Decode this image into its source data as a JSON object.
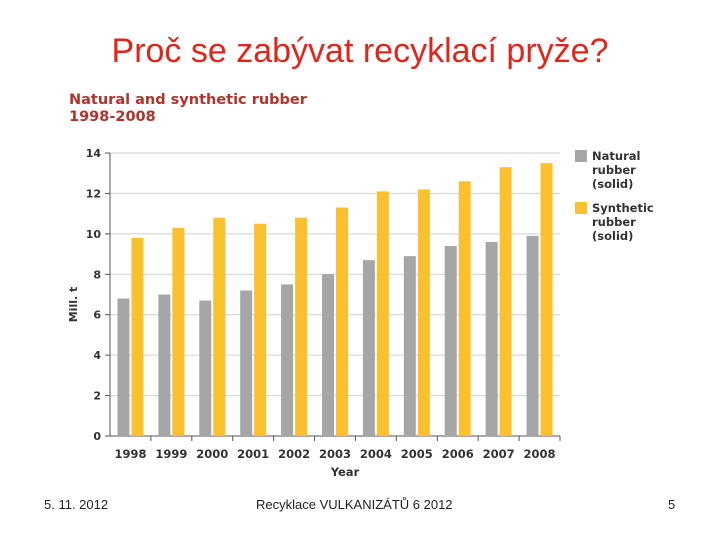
{
  "slide": {
    "title": "Proč se zabývat recyklací pryže?",
    "footer_date": "5. 11. 2012",
    "footer_center": "Recyklace VULKANIZÁTŮ 6 2012",
    "page_number": "5"
  },
  "chart_data": {
    "type": "bar",
    "title": "Natural and synthetic rubber",
    "subtitle": "1998-2008",
    "xlabel": "Year",
    "ylabel": "Mill. t",
    "ylim": [
      0,
      14
    ],
    "yticks": [
      0,
      2,
      4,
      6,
      8,
      10,
      12,
      14
    ],
    "grid": true,
    "legend_position": "right",
    "categories": [
      "1998",
      "1999",
      "2000",
      "2001",
      "2002",
      "2003",
      "2004",
      "2005",
      "2006",
      "2007",
      "2008"
    ],
    "series": [
      {
        "name": "Natural rubber (solid)",
        "color": "#a6a6a6",
        "values": [
          6.8,
          7.0,
          6.7,
          7.2,
          7.5,
          8.0,
          8.7,
          8.9,
          9.4,
          9.6,
          9.9
        ]
      },
      {
        "name": "Synthetic rubber (solid)",
        "color": "#fbc02d",
        "values": [
          9.8,
          10.3,
          10.8,
          10.5,
          10.8,
          11.3,
          12.1,
          12.2,
          12.6,
          13.3,
          13.5
        ]
      }
    ],
    "legend_lines": [
      [
        "Natural",
        "rubber",
        "(solid)"
      ],
      [
        "Synthetic",
        "rubber",
        "(solid)"
      ]
    ]
  }
}
